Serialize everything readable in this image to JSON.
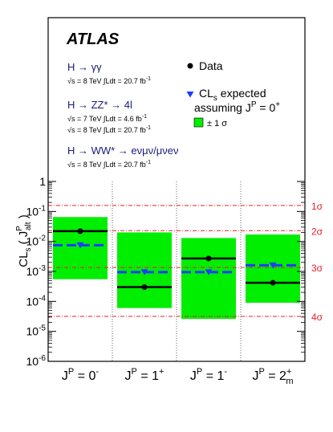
{
  "chart_data": {
    "type": "scatter",
    "title": "",
    "experiment_label": "ATLAS",
    "ylabel_main": "CL",
    "ylabel_sub": "s",
    "ylabel_paren": "( J",
    "ylabel_sup": "P",
    "ylabel_subalt": "alt",
    "ylabel_close": ")",
    "y_scale": "log",
    "ylim": [
      1e-06,
      1
    ],
    "y_ticks": [
      {
        "value": 1e-06,
        "base": "10",
        "exp": "-6"
      },
      {
        "value": 1e-05,
        "base": "10",
        "exp": "-5"
      },
      {
        "value": 0.0001,
        "base": "10",
        "exp": "-4"
      },
      {
        "value": 0.001,
        "base": "10",
        "exp": "-3"
      },
      {
        "value": 0.01,
        "base": "10",
        "exp": "-2"
      },
      {
        "value": 0.1,
        "base": "10",
        "exp": "-1"
      },
      {
        "value": 1,
        "base": "1",
        "exp": ""
      }
    ],
    "categories": [
      {
        "base": "J",
        "sup": "P",
        "eq": " = 0",
        "sup2": "-",
        "sub2": ""
      },
      {
        "base": "J",
        "sup": "P",
        "eq": " = 1",
        "sup2": "+",
        "sub2": ""
      },
      {
        "base": "J",
        "sup": "P",
        "eq": " = 1",
        "sup2": "-",
        "sub2": ""
      },
      {
        "base": "J",
        "sup": "P",
        "eq": " = 2",
        "sup2": "+",
        "sub2": "m"
      }
    ],
    "series": [
      {
        "name": "Data",
        "values": [
          0.022,
          0.0003,
          0.0027,
          0.00042
        ]
      },
      {
        "name": "CLs expected assuming JP = 0+",
        "values": [
          0.0075,
          0.00095,
          0.00095,
          0.0016
        ]
      }
    ],
    "band_1sigma": {
      "low": [
        0.00055,
        6e-05,
        2.6e-05,
        9e-05
      ],
      "high": [
        0.065,
        0.02,
        0.013,
        0.017
      ]
    },
    "sigma_lines": [
      {
        "label": "1σ",
        "value": 0.159
      },
      {
        "label": "2σ",
        "value": 0.0228
      },
      {
        "label": "3σ",
        "value": 0.00135
      },
      {
        "label": "4σ",
        "value": 3.17e-05
      }
    ],
    "legend": {
      "data_label": "Data",
      "exp_line1_main": "CL",
      "exp_line1_sub": "s",
      "exp_line1_rest": " expected",
      "exp_line2_main": "assuming J",
      "exp_line2_sup": "P",
      "exp_line2_rest": " = 0",
      "exp_line2_sup2": "+",
      "band_label": "± 1 σ"
    },
    "channels": [
      {
        "title": "H → γγ",
        "lines": [
          {
            "energy": "√s = 8 TeV",
            "lumi": "∫Ldt = 20.7 fb",
            "exp": "-1"
          }
        ]
      },
      {
        "title": "H → ZZ* → 4l",
        "lines": [
          {
            "energy": "√s = 7 TeV",
            "lumi": "∫Ldt = 4.6 fb",
            "exp": "-1"
          },
          {
            "energy": "√s = 8 TeV",
            "lumi": "∫Ldt = 20.7 fb",
            "exp": "-1"
          }
        ]
      },
      {
        "title": "H → WW* → eνμν/μνeν",
        "lines": [
          {
            "energy": "√s = 8 TeV",
            "lumi": "∫Ldt = 20.7 fb",
            "exp": "-1"
          }
        ]
      }
    ],
    "colors": {
      "band": "#00ee00",
      "expected": "#1a3eff",
      "expected_marker": "#1a3eff",
      "data": "#000000",
      "sigma_line": "#e8202a",
      "sigma_label": "#e8202a",
      "channel_title": "#1b1b78",
      "frame": "#000000"
    }
  }
}
